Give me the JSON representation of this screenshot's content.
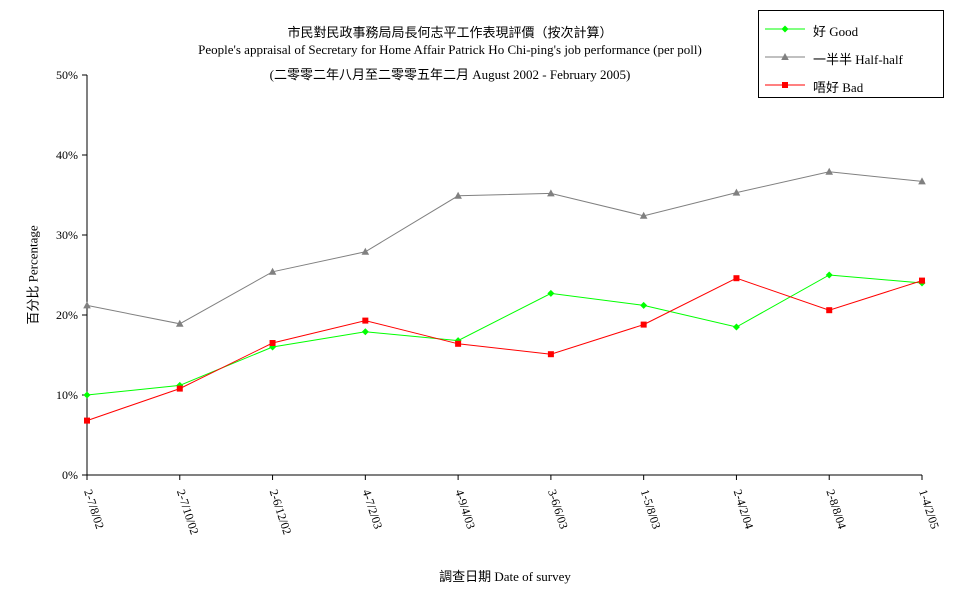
{
  "chart_data": {
    "type": "line",
    "title": "市民對民政事務局局長何志平工作表現評價（按次計算）",
    "subtitle": "People's appraisal of Secretary for Home Affair Patrick Ho Chi-ping's job performance (per poll)",
    "subtitle2": "(二零零二年八月至二零零五年二月 August 2002 - February 2005)",
    "xlabel": "調查日期 Date of survey",
    "ylabel": "百分比 Percentage",
    "ylim": [
      0,
      50
    ],
    "yticks": [
      "0%",
      "10%",
      "20%",
      "30%",
      "40%",
      "50%"
    ],
    "categories": [
      "2-7/8/02",
      "2-7/10/02",
      "2-6/12/02",
      "4-7/2/03",
      "4-9/4/03",
      "3-6/6/03",
      "1-5/8/03",
      "2-4/2/04",
      "2-8/8/04",
      "1-4/2/05"
    ],
    "grid": false,
    "legend_position": "top-right",
    "series": [
      {
        "name": "好 Good",
        "color": "#00ff00",
        "marker": "diamond",
        "values": [
          10.0,
          11.2,
          16.0,
          17.9,
          16.8,
          22.7,
          21.2,
          18.5,
          25.0,
          24.0
        ]
      },
      {
        "name": "一半半 Half-half",
        "color": "#808080",
        "marker": "triangle",
        "values": [
          21.2,
          18.9,
          25.4,
          27.9,
          34.9,
          35.2,
          32.4,
          35.3,
          37.9,
          36.7
        ]
      },
      {
        "name": "唔好 Bad",
        "color": "#ff0000",
        "marker": "square",
        "values": [
          6.8,
          10.8,
          16.5,
          19.3,
          16.4,
          15.1,
          18.8,
          24.6,
          20.6,
          24.3
        ]
      }
    ]
  }
}
